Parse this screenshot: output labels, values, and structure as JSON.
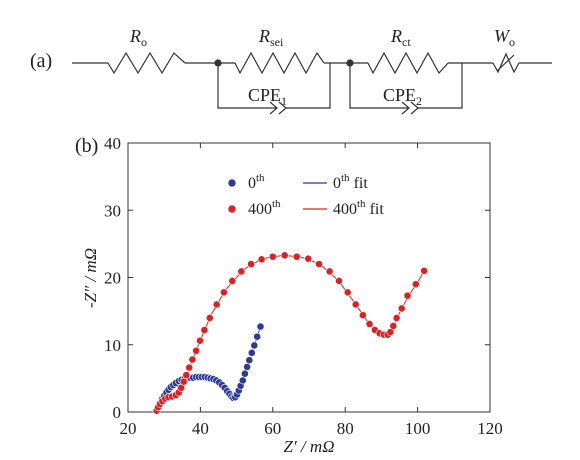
{
  "panel_a": {
    "label": "(a)",
    "elements": [
      {
        "name": "R",
        "sub": "o"
      },
      {
        "name": "R",
        "sub": "sei"
      },
      {
        "name": "CPE",
        "sub": "1"
      },
      {
        "name": "R",
        "sub": "ct"
      },
      {
        "name": "CPE",
        "sub": "2"
      },
      {
        "name": "W",
        "sub": "o"
      }
    ]
  },
  "panel_b": {
    "label": "(b)"
  },
  "colors": {
    "series_0": "#2e3a9a",
    "series_400": "#e02020",
    "axis": "#333333"
  },
  "chart_data": {
    "type": "scatter",
    "xlabel": "Z′ / mΩ",
    "ylabel": "-Z″ / mΩ",
    "xlim": [
      20,
      120
    ],
    "ylim": [
      0,
      40
    ],
    "xticks": [
      20,
      40,
      60,
      80,
      100,
      120
    ],
    "yticks": [
      0,
      10,
      20,
      30,
      40
    ],
    "grid": false,
    "legend_position": "top-center",
    "legend": [
      {
        "base": "0",
        "sup": "th",
        "suffix": "",
        "kind": "marker",
        "color": "#2e3a9a"
      },
      {
        "base": "0",
        "sup": "th",
        "suffix": " fit",
        "kind": "line",
        "color": "#2e3a9a"
      },
      {
        "base": "400",
        "sup": "th",
        "suffix": "",
        "kind": "marker",
        "color": "#e02020"
      },
      {
        "base": "400",
        "sup": "th",
        "suffix": " fit",
        "kind": "line",
        "color": "#e02020"
      }
    ],
    "series": [
      {
        "name": "0th",
        "color": "#2e3a9a",
        "points": [
          [
            28.0,
            0.3
          ],
          [
            28.4,
            0.8
          ],
          [
            28.9,
            1.4
          ],
          [
            29.4,
            1.9
          ],
          [
            30.0,
            2.4
          ],
          [
            30.6,
            2.9
          ],
          [
            31.2,
            3.3
          ],
          [
            31.8,
            3.7
          ],
          [
            32.5,
            4.0
          ],
          [
            33.2,
            4.3
          ],
          [
            34.0,
            4.6
          ],
          [
            34.8,
            4.8
          ],
          [
            35.6,
            4.9
          ],
          [
            36.4,
            5.0
          ],
          [
            37.2,
            5.1
          ],
          [
            38.0,
            5.1
          ],
          [
            38.8,
            5.2
          ],
          [
            39.6,
            5.2
          ],
          [
            40.4,
            5.2
          ],
          [
            41.2,
            5.2
          ],
          [
            42.0,
            5.1
          ],
          [
            42.8,
            5.0
          ],
          [
            43.6,
            4.9
          ],
          [
            44.4,
            4.7
          ],
          [
            45.2,
            4.4
          ],
          [
            46.0,
            4.0
          ],
          [
            46.7,
            3.6
          ],
          [
            47.4,
            3.1
          ],
          [
            48.0,
            2.7
          ],
          [
            48.6,
            2.3
          ],
          [
            49.1,
            2.1
          ],
          [
            49.6,
            2.2
          ],
          [
            50.1,
            2.6
          ],
          [
            50.6,
            3.2
          ],
          [
            51.1,
            3.9
          ],
          [
            51.7,
            4.7
          ],
          [
            52.3,
            5.7
          ],
          [
            52.9,
            6.7
          ],
          [
            53.5,
            7.7
          ],
          [
            54.2,
            8.8
          ],
          [
            54.9,
            9.9
          ],
          [
            55.7,
            11.2
          ],
          [
            56.6,
            12.7
          ]
        ],
        "fit": [
          [
            28.0,
            0.3
          ],
          [
            29.0,
            1.6
          ],
          [
            30.5,
            2.8
          ],
          [
            32.5,
            4.0
          ],
          [
            35.0,
            4.8
          ],
          [
            38.0,
            5.1
          ],
          [
            41.0,
            5.2
          ],
          [
            43.5,
            4.9
          ],
          [
            45.5,
            4.3
          ],
          [
            47.0,
            3.4
          ],
          [
            48.3,
            2.5
          ],
          [
            49.3,
            2.1
          ],
          [
            50.3,
            2.7
          ],
          [
            51.5,
            4.4
          ],
          [
            53.0,
            6.8
          ],
          [
            54.8,
            9.7
          ],
          [
            56.6,
            12.7
          ]
        ]
      },
      {
        "name": "400th",
        "color": "#e02020",
        "points": [
          [
            27.9,
            0.2
          ],
          [
            28.3,
            0.7
          ],
          [
            28.8,
            1.2
          ],
          [
            29.5,
            1.6
          ],
          [
            30.3,
            2.0
          ],
          [
            31.2,
            2.2
          ],
          [
            32.2,
            2.3
          ],
          [
            33.2,
            2.5
          ],
          [
            34.0,
            2.9
          ],
          [
            34.7,
            3.6
          ],
          [
            35.4,
            4.5
          ],
          [
            36.1,
            5.5
          ],
          [
            36.9,
            6.6
          ],
          [
            37.8,
            7.8
          ],
          [
            38.8,
            9.1
          ],
          [
            39.9,
            10.6
          ],
          [
            41.1,
            12.2
          ],
          [
            42.6,
            14.0
          ],
          [
            44.5,
            16.0
          ],
          [
            46.5,
            17.8
          ],
          [
            48.8,
            19.5
          ],
          [
            51.3,
            20.9
          ],
          [
            54.0,
            22.0
          ],
          [
            56.9,
            22.7
          ],
          [
            60.0,
            23.1
          ],
          [
            63.3,
            23.3
          ],
          [
            66.6,
            23.1
          ],
          [
            69.8,
            22.8
          ],
          [
            72.8,
            22.0
          ],
          [
            75.7,
            20.9
          ],
          [
            78.3,
            19.5
          ],
          [
            80.7,
            17.8
          ],
          [
            82.9,
            16.0
          ],
          [
            84.9,
            14.4
          ],
          [
            86.7,
            13.1
          ],
          [
            88.2,
            12.2
          ],
          [
            89.5,
            11.7
          ],
          [
            90.7,
            11.5
          ],
          [
            91.7,
            11.5
          ],
          [
            92.5,
            11.9
          ],
          [
            93.3,
            12.8
          ],
          [
            94.2,
            14.0
          ],
          [
            95.6,
            15.4
          ],
          [
            97.2,
            17.3
          ],
          [
            99.5,
            19.0
          ],
          [
            101.8,
            21.0
          ]
        ],
        "fit": [
          [
            27.9,
            0.2
          ],
          [
            29.0,
            1.4
          ],
          [
            30.5,
            2.0
          ],
          [
            32.5,
            2.4
          ],
          [
            34.2,
            3.0
          ],
          [
            35.5,
            4.6
          ],
          [
            37.5,
            7.3
          ],
          [
            40.0,
            10.7
          ],
          [
            43.0,
            14.5
          ],
          [
            47.0,
            18.2
          ],
          [
            52.0,
            21.2
          ],
          [
            57.0,
            22.8
          ],
          [
            63.0,
            23.3
          ],
          [
            68.0,
            23.0
          ],
          [
            73.0,
            22.0
          ],
          [
            78.0,
            19.6
          ],
          [
            82.0,
            16.7
          ],
          [
            86.0,
            13.6
          ],
          [
            89.0,
            11.9
          ],
          [
            91.5,
            11.5
          ],
          [
            93.0,
            12.4
          ],
          [
            95.0,
            14.7
          ],
          [
            97.5,
            17.3
          ],
          [
            100.0,
            19.3
          ],
          [
            101.8,
            21.0
          ]
        ]
      }
    ]
  }
}
